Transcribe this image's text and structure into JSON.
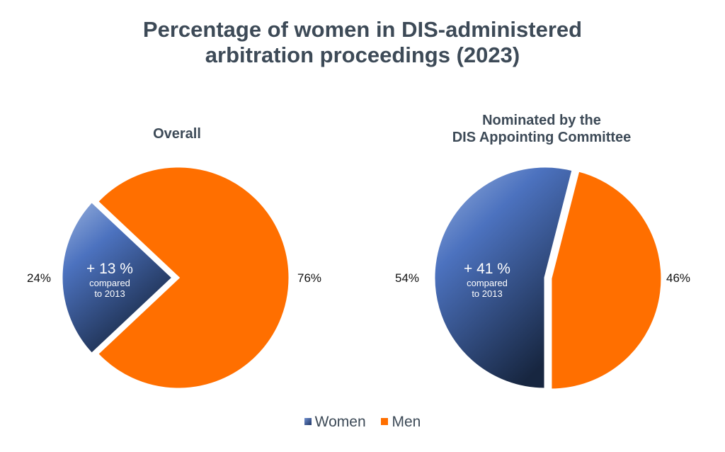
{
  "title_line1": "Percentage of women in DIS-administered",
  "title_line2": "arbitration proceedings (2023)",
  "colors": {
    "women_light": "#8fa9db",
    "women_mid": "#4a6fbd",
    "women_dark": "#1a2a45",
    "men": "#ff6f00",
    "text": "#3d4a57"
  },
  "legend": [
    {
      "label": "Women",
      "color": "#3f5fa3"
    },
    {
      "label": "Men",
      "color": "#ff6f00"
    }
  ],
  "chart_data": [
    {
      "type": "pie",
      "title": "Overall",
      "slices": [
        {
          "label": "Women",
          "value": 24,
          "data_label": "24%"
        },
        {
          "label": "Men",
          "value": 76,
          "data_label": "76%"
        }
      ],
      "annotation": {
        "line1": "+ 13 %",
        "line2": "compared",
        "line3": "to 2013"
      }
    },
    {
      "type": "pie",
      "title_line1": "Nominated by the",
      "title_line2": "DIS Appointing Committee",
      "slices": [
        {
          "label": "Women",
          "value": 54,
          "data_label": "54%"
        },
        {
          "label": "Men",
          "value": 46,
          "data_label": "46%"
        }
      ],
      "annotation": {
        "line1": "+ 41 %",
        "line2": "compared",
        "line3": "to 2013"
      }
    }
  ]
}
